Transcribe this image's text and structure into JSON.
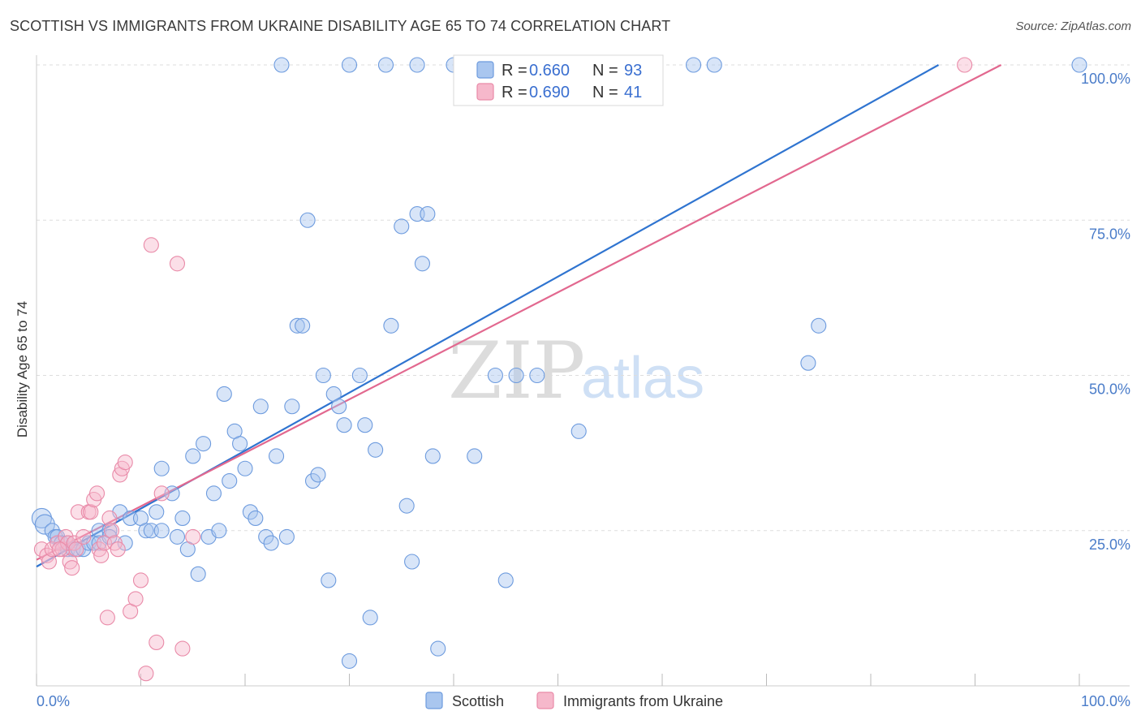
{
  "title": "SCOTTISH VS IMMIGRANTS FROM UKRAINE DISABILITY AGE 65 TO 74 CORRELATION CHART",
  "source": "Source: ZipAtlas.com",
  "watermark": {
    "zip": "ZIP",
    "atlas": "atlas"
  },
  "colors": {
    "scottish_fill": "#a9c6ef",
    "scottish_stroke": "#6d9bde",
    "scottish_line": "#2f74d0",
    "ukraine_fill": "#f6b8cb",
    "ukraine_stroke": "#e98aa8",
    "ukraine_line": "#e2688f",
    "tick_text": "#4a7cc9",
    "grid": "#dddddd"
  },
  "legend_box": {
    "rows": [
      {
        "r_label": "R = ",
        "r_value": "0.660",
        "n_label": "N = ",
        "n_value": "93"
      },
      {
        "r_label": "R = ",
        "r_value": "0.690",
        "n_label": "N = ",
        "n_value": "41"
      }
    ]
  },
  "chart_data": {
    "type": "scatter",
    "title": "SCOTTISH VS IMMIGRANTS FROM UKRAINE DISABILITY AGE 65 TO 74 CORRELATION CHART",
    "xlabel": "",
    "ylabel": "Disability Age 65 to 74",
    "xlim": [
      0,
      100
    ],
    "ylim": [
      0,
      100
    ],
    "x_tick_labels": [
      "0.0%",
      "100.0%"
    ],
    "y_tick_labels": [
      "25.0%",
      "50.0%",
      "75.0%",
      "100.0%"
    ],
    "y_ticks": [
      25,
      50,
      75,
      100
    ],
    "grid": true,
    "legend_position": "bottom",
    "series": [
      {
        "name": "Scottish",
        "R": 0.66,
        "N": 93,
        "trend": {
          "x0": 0,
          "y0": 19.2,
          "x1": 86.5,
          "y1": 100
        },
        "points": [
          [
            0.5,
            27
          ],
          [
            0.8,
            26
          ],
          [
            1.5,
            25
          ],
          [
            1.8,
            24
          ],
          [
            2,
            24
          ],
          [
            2.4,
            23
          ],
          [
            3,
            22
          ],
          [
            3.5,
            22
          ],
          [
            4,
            22
          ],
          [
            4.5,
            22
          ],
          [
            5,
            23
          ],
          [
            5.5,
            23
          ],
          [
            6,
            25
          ],
          [
            7,
            25
          ],
          [
            8,
            28
          ],
          [
            8.5,
            23
          ],
          [
            9,
            27
          ],
          [
            10,
            27
          ],
          [
            10.5,
            25
          ],
          [
            11,
            25
          ],
          [
            11.5,
            28
          ],
          [
            12,
            35
          ],
          [
            12,
            25
          ],
          [
            13,
            31
          ],
          [
            13.5,
            24
          ],
          [
            14,
            27
          ],
          [
            14.5,
            22
          ],
          [
            15,
            37
          ],
          [
            15.5,
            18
          ],
          [
            16,
            39
          ],
          [
            16.5,
            24
          ],
          [
            17,
            31
          ],
          [
            17.5,
            25
          ],
          [
            18,
            47
          ],
          [
            18.5,
            33
          ],
          [
            19,
            41
          ],
          [
            19.5,
            39
          ],
          [
            20,
            35
          ],
          [
            20.5,
            28
          ],
          [
            21,
            27
          ],
          [
            21.5,
            45
          ],
          [
            22,
            24
          ],
          [
            22.5,
            23
          ],
          [
            23,
            37
          ],
          [
            24,
            24
          ],
          [
            24.5,
            45
          ],
          [
            25,
            58
          ],
          [
            25.5,
            58
          ],
          [
            26,
            75
          ],
          [
            26.5,
            33
          ],
          [
            27,
            34
          ],
          [
            27.5,
            50
          ],
          [
            28,
            17
          ],
          [
            28.5,
            47
          ],
          [
            29,
            45
          ],
          [
            29.5,
            42
          ],
          [
            30,
            4
          ],
          [
            31,
            50
          ],
          [
            31.5,
            42
          ],
          [
            32,
            11
          ],
          [
            32.5,
            38
          ],
          [
            33.5,
            100
          ],
          [
            34,
            58
          ],
          [
            35,
            74
          ],
          [
            35.5,
            29
          ],
          [
            36,
            20
          ],
          [
            36.5,
            76
          ],
          [
            37,
            68
          ],
          [
            37.5,
            76
          ],
          [
            38,
            37
          ],
          [
            38.5,
            6
          ],
          [
            40,
            100
          ],
          [
            42,
            37
          ],
          [
            43,
            100
          ],
          [
            44,
            50
          ],
          [
            45,
            17
          ],
          [
            46,
            50
          ],
          [
            46.5,
            100
          ],
          [
            48,
            50
          ],
          [
            50,
            100
          ],
          [
            52,
            41
          ],
          [
            63,
            100
          ],
          [
            65,
            100
          ],
          [
            74,
            52
          ],
          [
            75,
            58
          ],
          [
            100,
            100
          ],
          [
            23.5,
            100
          ],
          [
            30,
            100
          ],
          [
            36.5,
            100
          ],
          [
            3,
            23
          ],
          [
            6,
            23
          ],
          [
            7,
            24
          ]
        ]
      },
      {
        "name": "Immigrants from Ukraine",
        "R": 0.69,
        "N": 41,
        "trend": {
          "x0": 0,
          "y0": 20.3,
          "x1": 92.5,
          "y1": 100
        },
        "points": [
          [
            0.5,
            22
          ],
          [
            1,
            21
          ],
          [
            1.2,
            20
          ],
          [
            1.5,
            22
          ],
          [
            2,
            23
          ],
          [
            2.5,
            22
          ],
          [
            2.8,
            24
          ],
          [
            3,
            23
          ],
          [
            3.2,
            20
          ],
          [
            3.4,
            19
          ],
          [
            3.6,
            23
          ],
          [
            3.8,
            22
          ],
          [
            4,
            28
          ],
          [
            4.5,
            24
          ],
          [
            5,
            28
          ],
          [
            5.2,
            28
          ],
          [
            5.5,
            30
          ],
          [
            5.8,
            31
          ],
          [
            6,
            22
          ],
          [
            6.2,
            21
          ],
          [
            6.5,
            23
          ],
          [
            6.8,
            11
          ],
          [
            7,
            27
          ],
          [
            7.2,
            25
          ],
          [
            7.5,
            23
          ],
          [
            7.8,
            22
          ],
          [
            8,
            34
          ],
          [
            8.2,
            35
          ],
          [
            8.5,
            36
          ],
          [
            9,
            12
          ],
          [
            9.5,
            14
          ],
          [
            10,
            17
          ],
          [
            10.5,
            2
          ],
          [
            11,
            71
          ],
          [
            11.5,
            7
          ],
          [
            12,
            31
          ],
          [
            13.5,
            68
          ],
          [
            14,
            6
          ],
          [
            15,
            24
          ],
          [
            89,
            100
          ],
          [
            2.2,
            22
          ]
        ]
      }
    ]
  },
  "bottom_legend": [
    {
      "label": "Scottish"
    },
    {
      "label": "Immigrants from Ukraine"
    }
  ]
}
